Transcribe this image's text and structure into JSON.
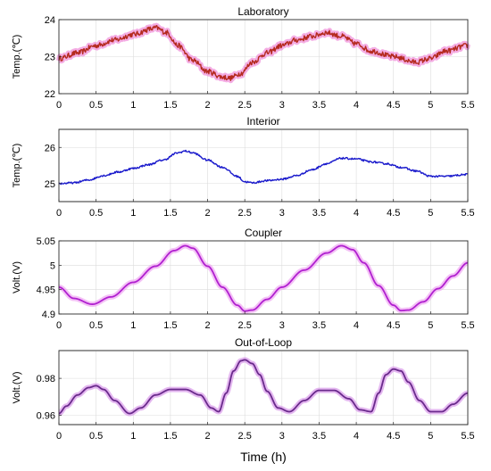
{
  "chart_data": [
    {
      "type": "line",
      "title": "Laboratory",
      "ylabel": "Temp.(℃)",
      "xlim": [
        0,
        5.5
      ],
      "ylim": [
        22,
        24
      ],
      "xticks": [
        0,
        0.5,
        1,
        1.5,
        2,
        2.5,
        3,
        3.5,
        4,
        4.5,
        5,
        5.5
      ],
      "xtick_labels": [
        "0",
        "0.5",
        "1",
        "1.5",
        "2",
        "2.5",
        "3",
        "3.5",
        "4",
        "4.5",
        "5",
        "5.5"
      ],
      "yticks": [
        22,
        23,
        24
      ],
      "ytick_labels": [
        "22",
        "23",
        "24"
      ],
      "grid": true,
      "series": [
        {
          "color": "#b52a1f",
          "glow": "#f08ad8",
          "noise": 0.07,
          "x": [
            0,
            0.25,
            0.5,
            0.75,
            1.0,
            1.25,
            1.3,
            1.45,
            1.6,
            1.8,
            2.0,
            2.2,
            2.3,
            2.45,
            2.6,
            2.8,
            3.0,
            3.2,
            3.4,
            3.6,
            3.8,
            4.0,
            4.2,
            4.5,
            4.8,
            5.0,
            5.2,
            5.5
          ],
          "y": [
            22.95,
            23.1,
            23.3,
            23.45,
            23.6,
            23.75,
            23.78,
            23.65,
            23.3,
            22.9,
            22.6,
            22.45,
            22.42,
            22.55,
            22.85,
            23.1,
            23.3,
            23.45,
            23.55,
            23.65,
            23.55,
            23.35,
            23.15,
            23.0,
            22.85,
            22.95,
            23.15,
            23.3
          ]
        }
      ]
    },
    {
      "type": "line",
      "title": "Interior",
      "ylabel": "Temp.(℃)",
      "xlim": [
        0,
        5.5
      ],
      "ylim": [
        24.5,
        26.5
      ],
      "xticks": [
        0,
        0.5,
        1,
        1.5,
        2,
        2.5,
        3,
        3.5,
        4,
        4.5,
        5,
        5.5
      ],
      "xtick_labels": [
        "0",
        "0.5",
        "1",
        "1.5",
        "2",
        "2.5",
        "3",
        "3.5",
        "4",
        "4.5",
        "5",
        "5.5"
      ],
      "yticks": [
        25,
        26
      ],
      "ytick_labels": [
        "25",
        "26"
      ],
      "grid": true,
      "series": [
        {
          "color": "#1a1acc",
          "glow": "",
          "noise": 0.025,
          "x": [
            0,
            0.2,
            0.4,
            0.6,
            0.8,
            1.0,
            1.2,
            1.4,
            1.6,
            1.7,
            1.8,
            2.0,
            2.2,
            2.4,
            2.5,
            2.6,
            2.8,
            3.0,
            3.2,
            3.4,
            3.6,
            3.8,
            4.0,
            4.2,
            4.4,
            4.6,
            4.8,
            5.0,
            5.2,
            5.5
          ],
          "y": [
            25.0,
            25.02,
            25.1,
            25.22,
            25.32,
            25.42,
            25.52,
            25.65,
            25.85,
            25.9,
            25.85,
            25.65,
            25.45,
            25.2,
            25.05,
            25.02,
            25.08,
            25.12,
            25.22,
            25.38,
            25.55,
            25.7,
            25.68,
            25.6,
            25.55,
            25.45,
            25.35,
            25.2,
            25.2,
            25.25
          ]
        }
      ]
    },
    {
      "type": "line",
      "title": "Coupler",
      "ylabel": "Volt.(V)",
      "xlim": [
        0,
        5.5
      ],
      "ylim": [
        4.9,
        5.05
      ],
      "xticks": [
        0,
        0.5,
        1,
        1.5,
        2,
        2.5,
        3,
        3.5,
        4,
        4.5,
        5,
        5.5
      ],
      "xtick_labels": [
        "0",
        "0.5",
        "1",
        "1.5",
        "2",
        "2.5",
        "3",
        "3.5",
        "4",
        "4.5",
        "5",
        "5.5"
      ],
      "yticks": [
        4.9,
        4.95,
        5,
        5.05
      ],
      "ytick_labels": [
        "4.9",
        "4.95",
        "5",
        "5.05"
      ],
      "grid": true,
      "series": [
        {
          "color": "#b020d0",
          "glow": "#f0a6f2",
          "noise": 0,
          "x": [
            0,
            0.2,
            0.45,
            0.7,
            1.0,
            1.3,
            1.55,
            1.7,
            1.8,
            2.0,
            2.2,
            2.4,
            2.5,
            2.6,
            2.8,
            3.0,
            3.3,
            3.6,
            3.8,
            3.95,
            4.1,
            4.3,
            4.5,
            4.6,
            4.7,
            4.9,
            5.1,
            5.3,
            5.5
          ],
          "y": [
            4.955,
            4.932,
            4.92,
            4.935,
            4.965,
            4.998,
            5.03,
            5.04,
            5.035,
            4.998,
            4.955,
            4.918,
            4.906,
            4.908,
            4.93,
            4.955,
            4.99,
            5.025,
            5.04,
            5.032,
            5.005,
            4.958,
            4.918,
            4.907,
            4.908,
            4.925,
            4.952,
            4.978,
            5.005
          ]
        }
      ]
    },
    {
      "type": "line",
      "title": "Out-of-Loop",
      "ylabel": "Volt.(V)",
      "xlim": [
        0,
        5.5
      ],
      "ylim": [
        0.955,
        0.995
      ],
      "xticks": [
        0,
        0.5,
        1,
        1.5,
        2,
        2.5,
        3,
        3.5,
        4,
        4.5,
        5,
        5.5
      ],
      "xtick_labels": [
        "0",
        "0.5",
        "1",
        "1.5",
        "2",
        "2.5",
        "3",
        "3.5",
        "4",
        "4.5",
        "5",
        "5.5"
      ],
      "yticks": [
        0.96,
        0.98
      ],
      "ytick_labels": [
        "0.96",
        "0.98"
      ],
      "grid": true,
      "series": [
        {
          "color": "#6a2a8c",
          "glow": "#d998ea",
          "noise": 0,
          "x": [
            0,
            0.1,
            0.25,
            0.4,
            0.5,
            0.6,
            0.75,
            0.95,
            1.1,
            1.3,
            1.5,
            1.7,
            1.9,
            2.05,
            2.15,
            2.25,
            2.35,
            2.45,
            2.5,
            2.6,
            2.7,
            2.8,
            2.95,
            3.1,
            3.3,
            3.5,
            3.7,
            3.9,
            4.05,
            4.2,
            4.3,
            4.4,
            4.5,
            4.6,
            4.7,
            4.85,
            5.0,
            5.15,
            5.3,
            5.5
          ],
          "y": [
            0.961,
            0.965,
            0.971,
            0.975,
            0.976,
            0.974,
            0.968,
            0.961,
            0.964,
            0.971,
            0.974,
            0.974,
            0.971,
            0.964,
            0.962,
            0.972,
            0.984,
            0.9895,
            0.99,
            0.988,
            0.982,
            0.973,
            0.964,
            0.962,
            0.968,
            0.9735,
            0.9735,
            0.969,
            0.963,
            0.962,
            0.972,
            0.982,
            0.985,
            0.984,
            0.978,
            0.968,
            0.962,
            0.962,
            0.966,
            0.972
          ]
        }
      ]
    }
  ],
  "figure": {
    "xlabel": "Time (h)"
  }
}
